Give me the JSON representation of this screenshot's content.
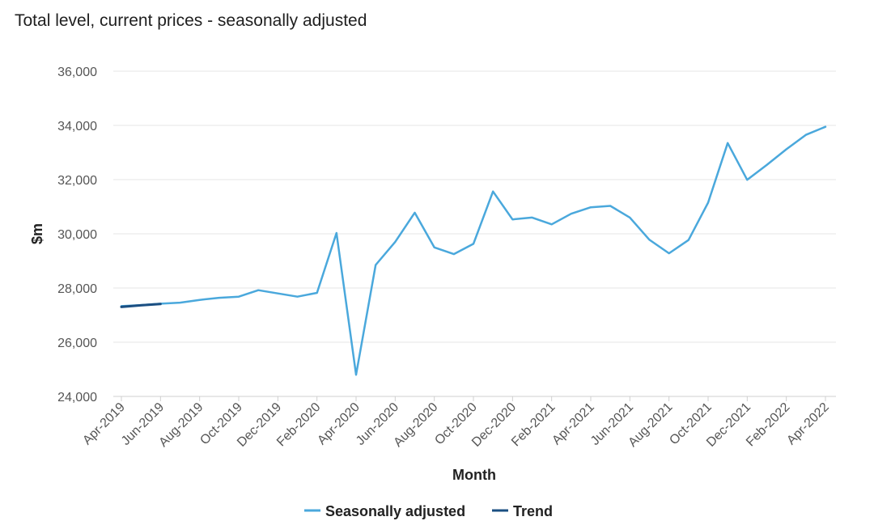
{
  "chart_data": {
    "type": "line",
    "title": "Total level, current prices - seasonally adjusted",
    "xlabel": "Month",
    "ylabel": "$m",
    "ylim": [
      24000,
      36000
    ],
    "yticks": [
      "24,000",
      "26,000",
      "28,000",
      "30,000",
      "32,000",
      "34,000",
      "36,000"
    ],
    "ytick_values": [
      24000,
      26000,
      28000,
      30000,
      32000,
      34000,
      36000
    ],
    "x": [
      "Apr-2019",
      "May-2019",
      "Jun-2019",
      "Jul-2019",
      "Aug-2019",
      "Sep-2019",
      "Oct-2019",
      "Nov-2019",
      "Dec-2019",
      "Jan-2020",
      "Feb-2020",
      "Mar-2020",
      "Apr-2020",
      "May-2020",
      "Jun-2020",
      "Jul-2020",
      "Aug-2020",
      "Sep-2020",
      "Oct-2020",
      "Nov-2020",
      "Dec-2020",
      "Jan-2021",
      "Feb-2021",
      "Mar-2021",
      "Apr-2021",
      "May-2021",
      "Jun-2021",
      "Jul-2021",
      "Aug-2021",
      "Sep-2021",
      "Oct-2021",
      "Nov-2021",
      "Dec-2021",
      "Jan-2022",
      "Feb-2022",
      "Mar-2022",
      "Apr-2022"
    ],
    "xtick_labels": [
      "Apr-2019",
      "Jun-2019",
      "Aug-2019",
      "Oct-2019",
      "Dec-2019",
      "Feb-2020",
      "Apr-2020",
      "Jun-2020",
      "Aug-2020",
      "Oct-2020",
      "Dec-2020",
      "Feb-2021",
      "Apr-2021",
      "Jun-2021",
      "Aug-2021",
      "Oct-2021",
      "Dec-2021",
      "Feb-2022",
      "Apr-2022"
    ],
    "grid": "horizontal",
    "legend_position": "bottom",
    "series": [
      {
        "name": "Seasonally adjusted",
        "color": "#4aa8dc",
        "values": [
          27330,
          27370,
          27420,
          27460,
          27560,
          27640,
          27680,
          27920,
          27800,
          27680,
          27820,
          30030,
          24800,
          28850,
          29700,
          30780,
          29500,
          29250,
          29630,
          31560,
          30530,
          30600,
          30350,
          30740,
          30980,
          31030,
          30600,
          29780,
          29280,
          29770,
          31150,
          33350,
          31990,
          32540,
          33120,
          33650,
          33950
        ]
      },
      {
        "name": "Trend",
        "color": "#1b4f82",
        "values": [
          27300,
          27360,
          27410,
          null,
          null,
          null,
          null,
          null,
          null,
          null,
          null,
          null,
          null,
          null,
          null,
          null,
          null,
          null,
          null,
          null,
          null,
          null,
          null,
          null,
          null,
          null,
          null,
          null,
          null,
          null,
          null,
          null,
          null,
          null,
          null,
          null,
          null
        ]
      }
    ]
  }
}
